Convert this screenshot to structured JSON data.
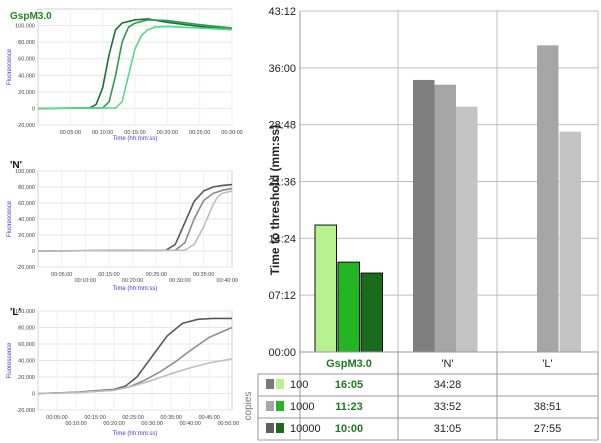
{
  "chart_data": [
    {
      "type": "bar",
      "title": "",
      "ylabel": "Time to threshold (mm:ss)",
      "ylim_seconds": [
        0,
        2592
      ],
      "y_ticks": [
        {
          "seconds": 0,
          "label": "00:00"
        },
        {
          "seconds": 432,
          "label": "07:12"
        },
        {
          "seconds": 864,
          "label": "14:24"
        },
        {
          "seconds": 1296,
          "label": "21:36"
        },
        {
          "seconds": 1728,
          "label": "28:48"
        },
        {
          "seconds": 2160,
          "label": "36:00"
        },
        {
          "seconds": 2592,
          "label": "43:12"
        }
      ],
      "categories": [
        "GspM3.0",
        "'N'",
        "'L'"
      ],
      "copies_label": "copies",
      "series": [
        {
          "name": "100",
          "values_seconds": [
            965,
            2068,
            null
          ],
          "table": [
            "16:05",
            "34:28",
            ""
          ],
          "colors": [
            "#b8f28e",
            "#7f7f7f",
            "#9d9d9d"
          ]
        },
        {
          "name": "1000",
          "values_seconds": [
            683,
            2032,
            2331
          ],
          "table": [
            "11:23",
            "33:52",
            "38:51"
          ],
          "colors": [
            "#24b524",
            "#a6a6a6",
            "#a6a6a6"
          ]
        },
        {
          "name": "10000",
          "values_seconds": [
            600,
            1865,
            1675
          ],
          "table": [
            "10:00",
            "31:05",
            "27:55"
          ],
          "colors": [
            "#1c6b1c",
            "#c3c3c3",
            "#c3c3c3"
          ]
        }
      ],
      "legend_swatches": [
        {
          "gray": "#7a7a7a",
          "green": "#b8f28e"
        },
        {
          "gray": "#a6a6a6",
          "green": "#24b524"
        },
        {
          "gray": "#606060",
          "green": "#1c6b1c"
        }
      ]
    },
    {
      "type": "line",
      "title": "GspM3.0",
      "title_color": "#1e8a1e",
      "xlabel": "Time (hh:mm:ss)",
      "ylabel": "Fluorescence",
      "y_ticks": [
        "-20,000",
        "0",
        "20,000",
        "40,000",
        "60,000",
        "80,000",
        "100,000"
      ],
      "y_tick_values": [
        -20000,
        0,
        20000,
        40000,
        60000,
        80000,
        100000
      ],
      "x_tick_labels": [
        "00:05:00",
        "00:10:00",
        "00:15:00",
        "00:20:00",
        "00:25:00",
        "00:30:00"
      ],
      "x_tick_minutes": [
        5,
        10,
        15,
        20,
        25,
        30
      ],
      "xlim_minutes": [
        0,
        30
      ],
      "ylim": [
        -20000,
        120000
      ],
      "series": [
        {
          "color": "#1d6e3a",
          "x": [
            0,
            8,
            9,
            10,
            11,
            12,
            13,
            15,
            17,
            20,
            25,
            30
          ],
          "y": [
            0,
            600,
            5000,
            25000,
            65000,
            95000,
            103000,
            107000,
            108000,
            104000,
            99000,
            95000
          ]
        },
        {
          "color": "#2a9a4e",
          "x": [
            0,
            10,
            11,
            12,
            13,
            14,
            15,
            17,
            20,
            25,
            30
          ],
          "y": [
            0,
            600,
            8000,
            40000,
            80000,
            98000,
            103000,
            107000,
            106000,
            101000,
            97000
          ]
        },
        {
          "color": "#52d98a",
          "x": [
            0,
            12,
            13,
            14,
            15,
            16,
            17,
            18,
            20,
            25,
            30
          ],
          "y": [
            0,
            600,
            8000,
            40000,
            72000,
            88000,
            95000,
            98000,
            99000,
            97000,
            95000
          ]
        }
      ]
    },
    {
      "type": "line",
      "title": "'N'",
      "xlabel": "Time (hh:mm:ss)",
      "ylabel": "Fluorescence",
      "y_ticks": [
        "-20,000",
        "0",
        "20,000",
        "40,000",
        "60,000",
        "80,000",
        "100,000"
      ],
      "y_tick_values": [
        -20000,
        0,
        20000,
        40000,
        60000,
        80000,
        100000
      ],
      "x_tick_labels": [
        "00:05:00",
        "00:10:00",
        "00:15:00",
        "00:20:00",
        "00:25:00",
        "00:30:00",
        "00:35:00",
        "00:40:00"
      ],
      "x_tick_minutes": [
        5,
        10,
        15,
        20,
        25,
        30,
        35,
        40
      ],
      "xlim_minutes": [
        0,
        41
      ],
      "ylim": [
        -20000,
        100000
      ],
      "series": [
        {
          "color": "#5a5a5a",
          "x": [
            0,
            27,
            29,
            31,
            33,
            35,
            37,
            39,
            41
          ],
          "y": [
            0,
            1000,
            8000,
            35000,
            62000,
            75000,
            80000,
            82000,
            83000
          ]
        },
        {
          "color": "#8a8a8a",
          "x": [
            0,
            29,
            31,
            33,
            35,
            37,
            39,
            41
          ],
          "y": [
            0,
            1000,
            10000,
            40000,
            63000,
            72000,
            76000,
            78000
          ]
        },
        {
          "color": "#bdbdbd",
          "x": [
            0,
            31,
            33,
            35,
            37,
            38,
            39,
            41
          ],
          "y": [
            0,
            1000,
            8000,
            30000,
            58000,
            68000,
            72000,
            75000
          ]
        }
      ]
    },
    {
      "type": "line",
      "title": "'L'",
      "xlabel": "Time (hh:mm:ss)",
      "ylabel": "Fluorescence",
      "y_ticks": [
        "-20,000",
        "0",
        "20,000",
        "40,000",
        "60,000",
        "80,000",
        "100,000"
      ],
      "y_tick_values": [
        -20000,
        0,
        20000,
        40000,
        60000,
        80000,
        100000
      ],
      "x_tick_labels": [
        "00:05:00",
        "00:10:00",
        "00:15:00",
        "00:20:00",
        "00:25:00",
        "00:30:00",
        "00:35:00",
        "00:40:00",
        "00:45:00",
        "00:50:00"
      ],
      "x_tick_minutes": [
        5,
        10,
        15,
        20,
        25,
        30,
        35,
        40,
        45,
        50
      ],
      "xlim_minutes": [
        0,
        51
      ],
      "ylim": [
        -20000,
        100000
      ],
      "series": [
        {
          "color": "#5a5a5a",
          "x": [
            0,
            10,
            20,
            23,
            26,
            30,
            34,
            38,
            42,
            46,
            51
          ],
          "y": [
            0,
            1500,
            5000,
            9000,
            20000,
            45000,
            70000,
            85000,
            90000,
            91000,
            91000
          ]
        },
        {
          "color": "#8f8f8f",
          "x": [
            0,
            10,
            20,
            24,
            28,
            32,
            36,
            40,
            45,
            51
          ],
          "y": [
            0,
            1200,
            4000,
            8000,
            16000,
            26000,
            38000,
            52000,
            68000,
            80000
          ]
        },
        {
          "color": "#bdbdbd",
          "x": [
            0,
            10,
            20,
            25,
            30,
            35,
            40,
            45,
            51
          ],
          "y": [
            0,
            1000,
            4000,
            9000,
            16000,
            24000,
            31000,
            37000,
            42000
          ]
        }
      ]
    }
  ]
}
